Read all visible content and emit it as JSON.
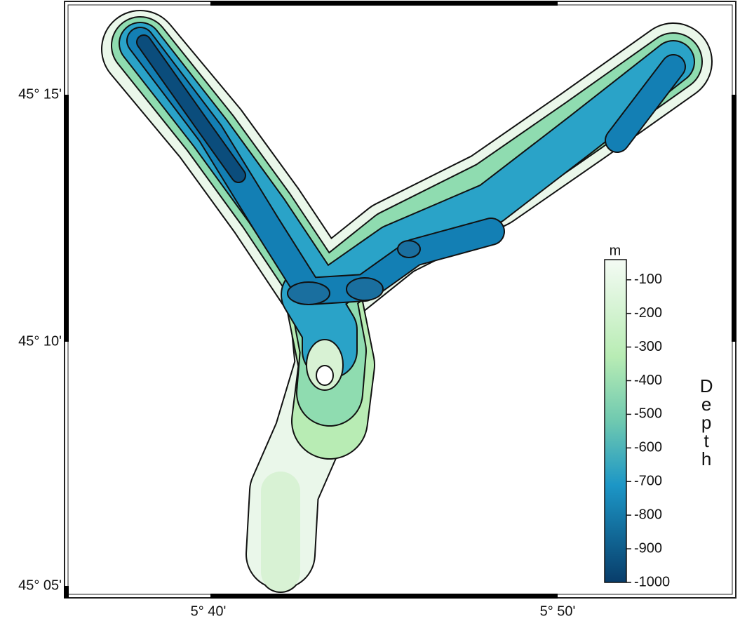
{
  "map": {
    "y_labels": [
      "45° 15'",
      "45° 10'",
      "45° 05'"
    ],
    "x_labels": [
      "5° 40'",
      "5° 50'"
    ],
    "colorbar": {
      "unit": "m",
      "title": "Depth",
      "clim": [
        -40,
        -1000
      ],
      "ticks": [
        -100,
        -200,
        -300,
        -400,
        -500,
        -600,
        -700,
        -800,
        -900,
        -1000
      ]
    }
  }
}
